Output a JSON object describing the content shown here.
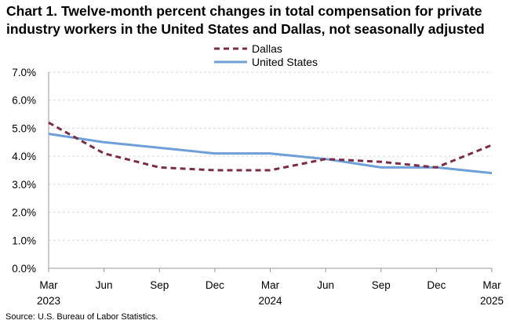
{
  "title_line1": "Chart 1. Twelve-month percent changes in total compensation for private",
  "title_line2": "industry workers in the United States and Dallas, not seasonally adjusted",
  "source": "Source: U.S. Bureau of Labor Statistics.",
  "chart_data": {
    "type": "line",
    "title": "Chart 1. Twelve-month percent changes in total compensation for private industry workers in the United States and Dallas, not seasonally adjusted",
    "categories": [
      "Mar 2023",
      "Jun",
      "Sep",
      "Dec",
      "Mar 2024",
      "Jun",
      "Sep",
      "Dec",
      "Mar 2025"
    ],
    "x_tick_labels": [
      {
        "month": "Mar",
        "year": "2023"
      },
      {
        "month": "Jun",
        "year": ""
      },
      {
        "month": "Sep",
        "year": ""
      },
      {
        "month": "Dec",
        "year": ""
      },
      {
        "month": "Mar",
        "year": "2024"
      },
      {
        "month": "Jun",
        "year": ""
      },
      {
        "month": "Sep",
        "year": ""
      },
      {
        "month": "Dec",
        "year": ""
      },
      {
        "month": "Mar",
        "year": "2025"
      }
    ],
    "ylim": [
      0,
      7
    ],
    "y_ticks": [
      "0.0%",
      "1.0%",
      "2.0%",
      "3.0%",
      "4.0%",
      "5.0%",
      "6.0%",
      "7.0%"
    ],
    "grid": true,
    "legend_position": "top-center",
    "series": [
      {
        "name": "Dallas",
        "color": "#7b2c47",
        "style": "dashed",
        "values": [
          5.2,
          4.1,
          3.6,
          3.5,
          3.5,
          3.9,
          3.8,
          3.6,
          4.4
        ]
      },
      {
        "name": "United States",
        "color": "#6f9fd8",
        "style": "solid",
        "values": [
          4.8,
          4.5,
          4.3,
          4.1,
          4.1,
          3.9,
          3.6,
          3.6,
          3.4
        ]
      }
    ]
  }
}
